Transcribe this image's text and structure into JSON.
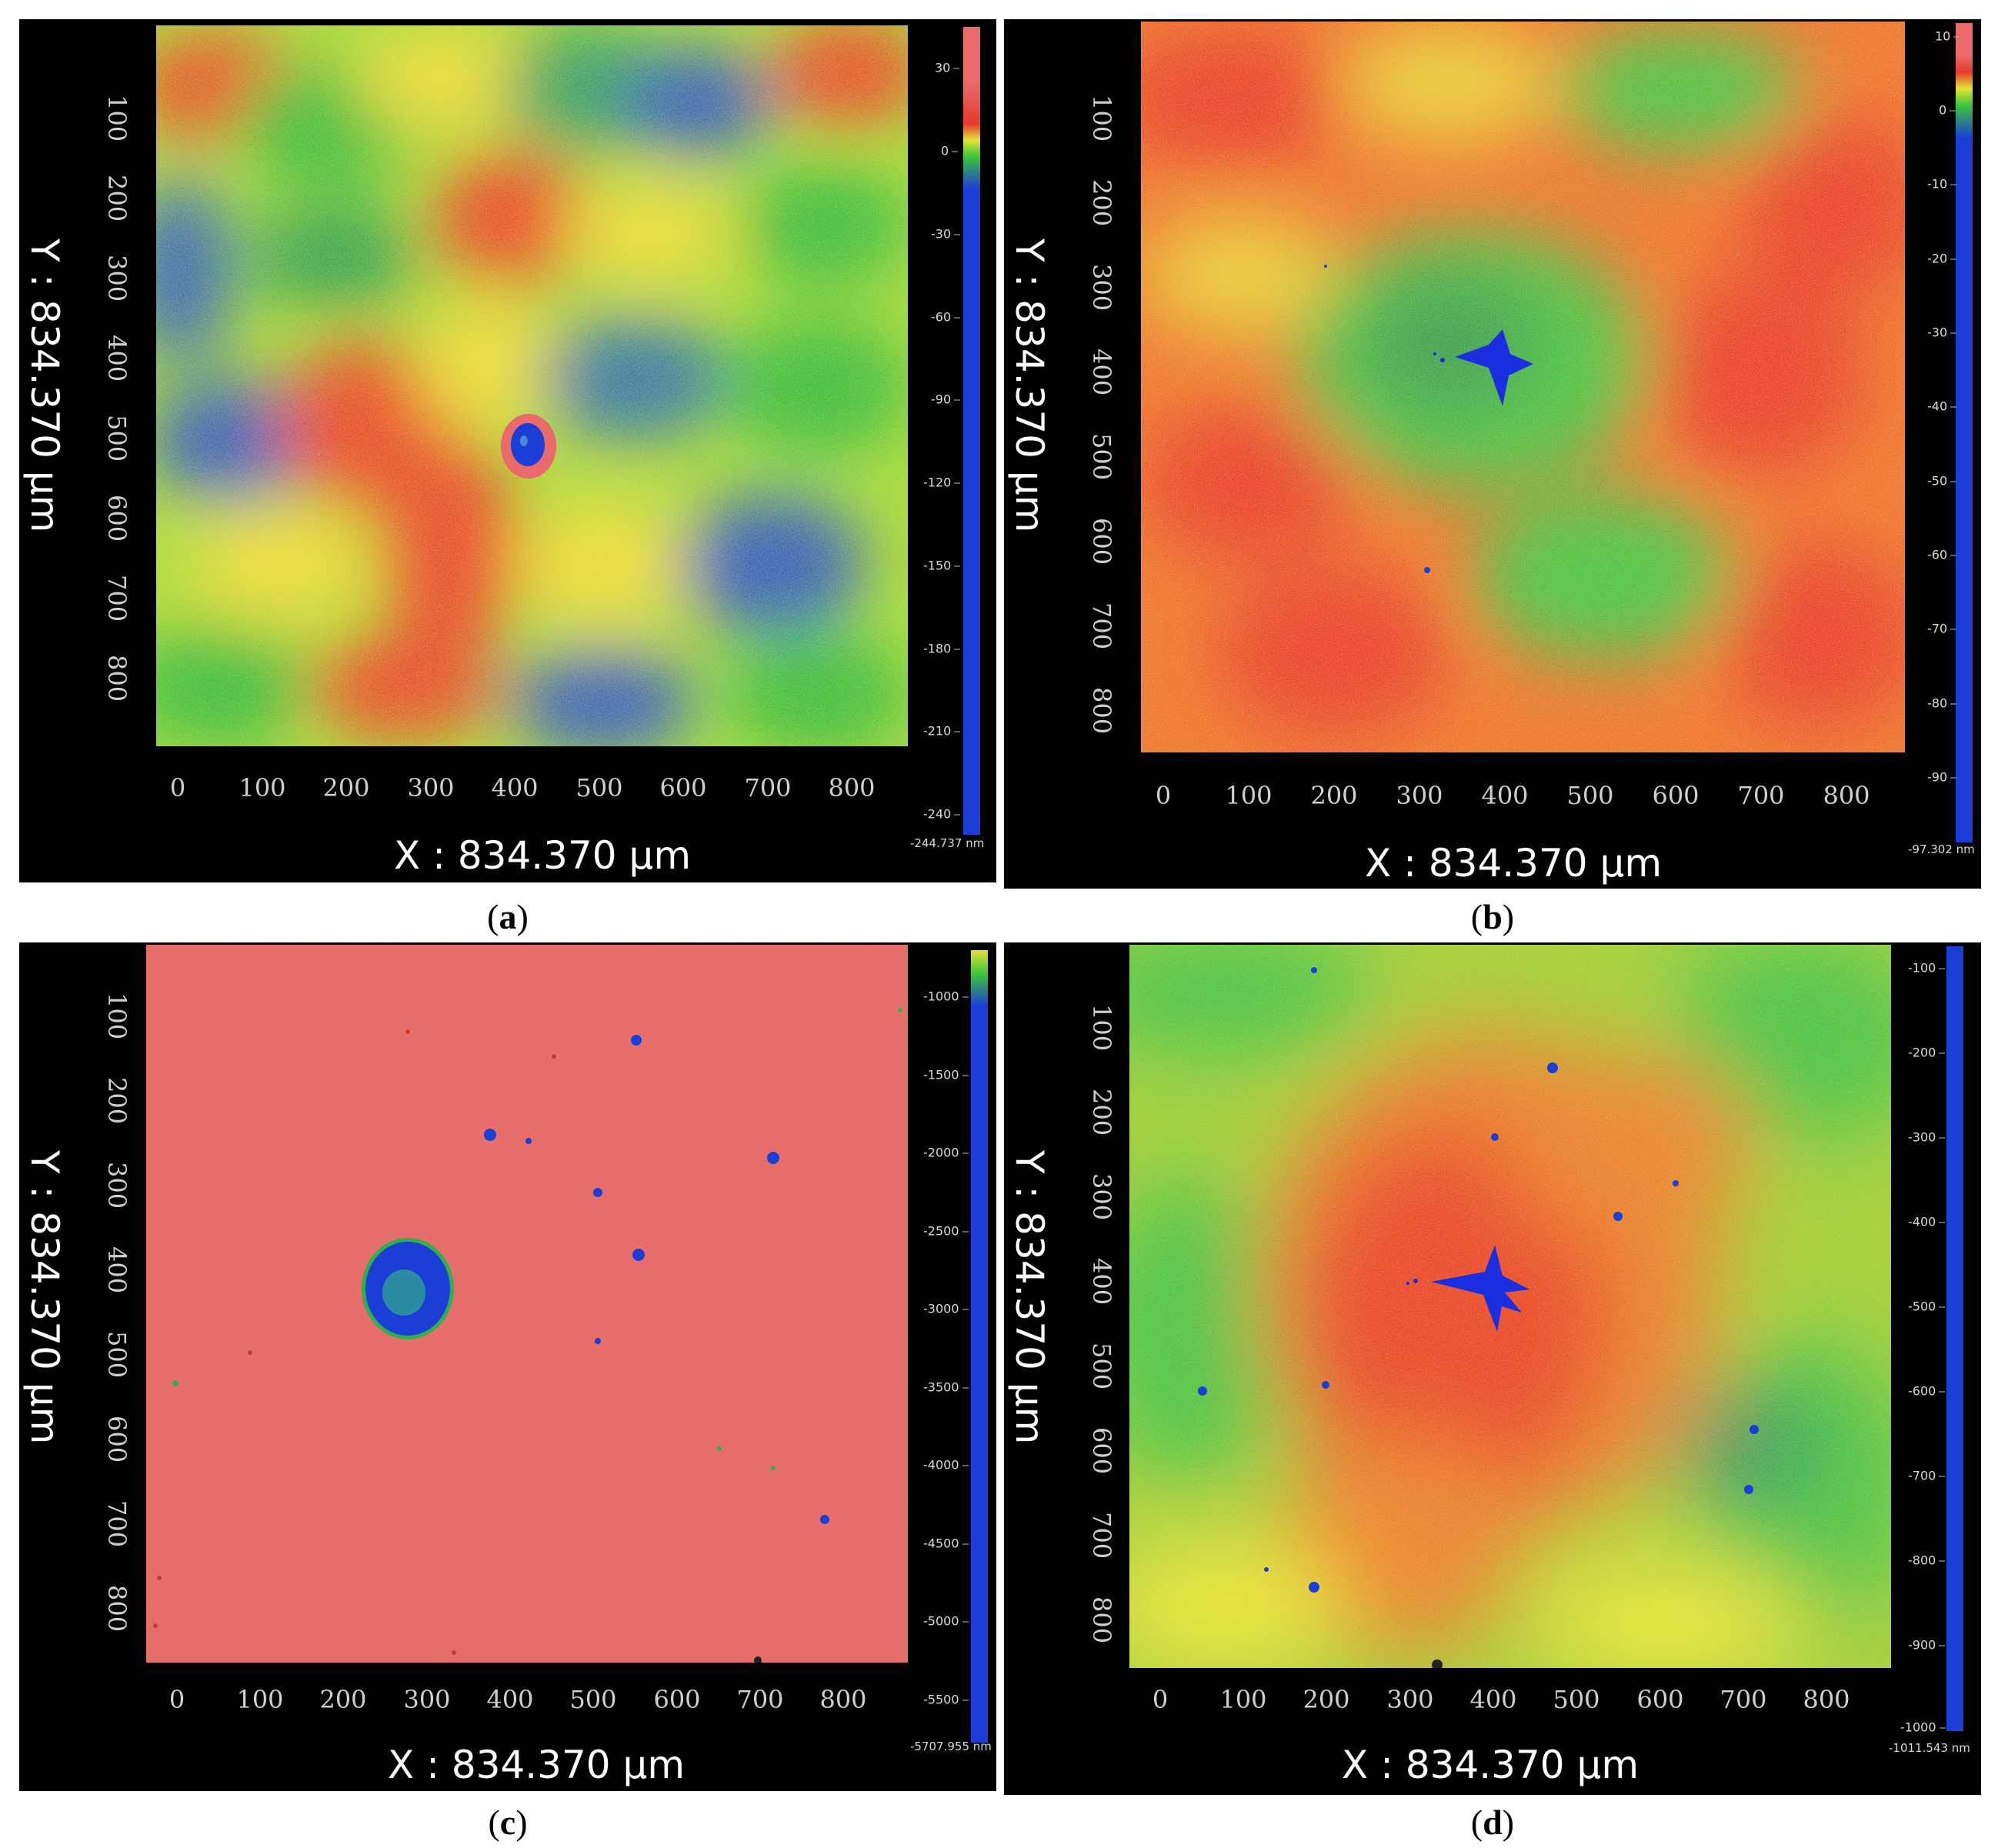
{
  "panels": [
    {
      "id": "a",
      "caption_letter": "a",
      "y_label": "Y : 834.370 µm",
      "x_label": "X : 834.370 µm",
      "y_ticks": [
        "100",
        "200",
        "300",
        "400",
        "500",
        "600",
        "700",
        "800"
      ],
      "x_ticks": [
        "0",
        "100",
        "200",
        "300",
        "400",
        "500",
        "600",
        "700",
        "800"
      ],
      "colorbar_ticks": [
        "30",
        "0",
        "-30",
        "-60",
        "-90",
        "-120",
        "-150",
        "-180",
        "-210",
        "-240"
      ],
      "colorbar_min": "-244.737 nm",
      "surface": "mixed red/yellow/green/blue texture with a small red-rimmed pit near the center"
    },
    {
      "id": "b",
      "caption_letter": "b",
      "y_label": "Y : 834.370 µm",
      "x_label": "X : 834.370 µm",
      "y_ticks": [
        "100",
        "200",
        "300",
        "400",
        "500",
        "600",
        "700",
        "800"
      ],
      "x_ticks": [
        "0",
        "100",
        "200",
        "300",
        "400",
        "500",
        "600",
        "700",
        "800"
      ],
      "colorbar_ticks": [
        "10",
        "0",
        "-10",
        "-20",
        "-30",
        "-40",
        "-50",
        "-60",
        "-70",
        "-80",
        "-90"
      ],
      "colorbar_min": "-97.302 nm",
      "surface": "mostly red/orange texture with a blue star-shaped pit"
    },
    {
      "id": "c",
      "caption_letter": "c",
      "y_label": "Y : 834.370 µm",
      "x_label": "X : 834.370 µm",
      "y_ticks": [
        "100",
        "200",
        "300",
        "400",
        "500",
        "600",
        "700",
        "800"
      ],
      "x_ticks": [
        "0",
        "100",
        "200",
        "300",
        "400",
        "500",
        "600",
        "700",
        "800"
      ],
      "colorbar_ticks": [
        "-1000",
        "-1500",
        "-2000",
        "-2500",
        "-3000",
        "-3500",
        "-4000",
        "-4500",
        "-5000",
        "-5500"
      ],
      "colorbar_min": "-5707.955 nm",
      "surface": "uniform red surface with a large blue pit and scattered small pits"
    },
    {
      "id": "d",
      "caption_letter": "d",
      "y_label": "Y : 834.370 µm",
      "x_label": "X : 834.370 µm",
      "y_ticks": [
        "100",
        "200",
        "300",
        "400",
        "500",
        "600",
        "700",
        "800"
      ],
      "x_ticks": [
        "0",
        "100",
        "200",
        "300",
        "400",
        "500",
        "600",
        "700",
        "800"
      ],
      "colorbar_ticks": [
        "-100",
        "-200",
        "-300",
        "-400",
        "-500",
        "-600",
        "-700",
        "-800",
        "-900",
        "-1000"
      ],
      "colorbar_min": "-1011.543 nm",
      "surface": "red center region fading to green edges with a blue star-shaped pit and small dark pits"
    }
  ],
  "colors": {
    "red": "#e8362a",
    "orange": "#f07a2a",
    "yellow": "#e6e23a",
    "green": "#3cc63a",
    "blue": "#1b3fd6",
    "flat_red": "#e96a66"
  }
}
